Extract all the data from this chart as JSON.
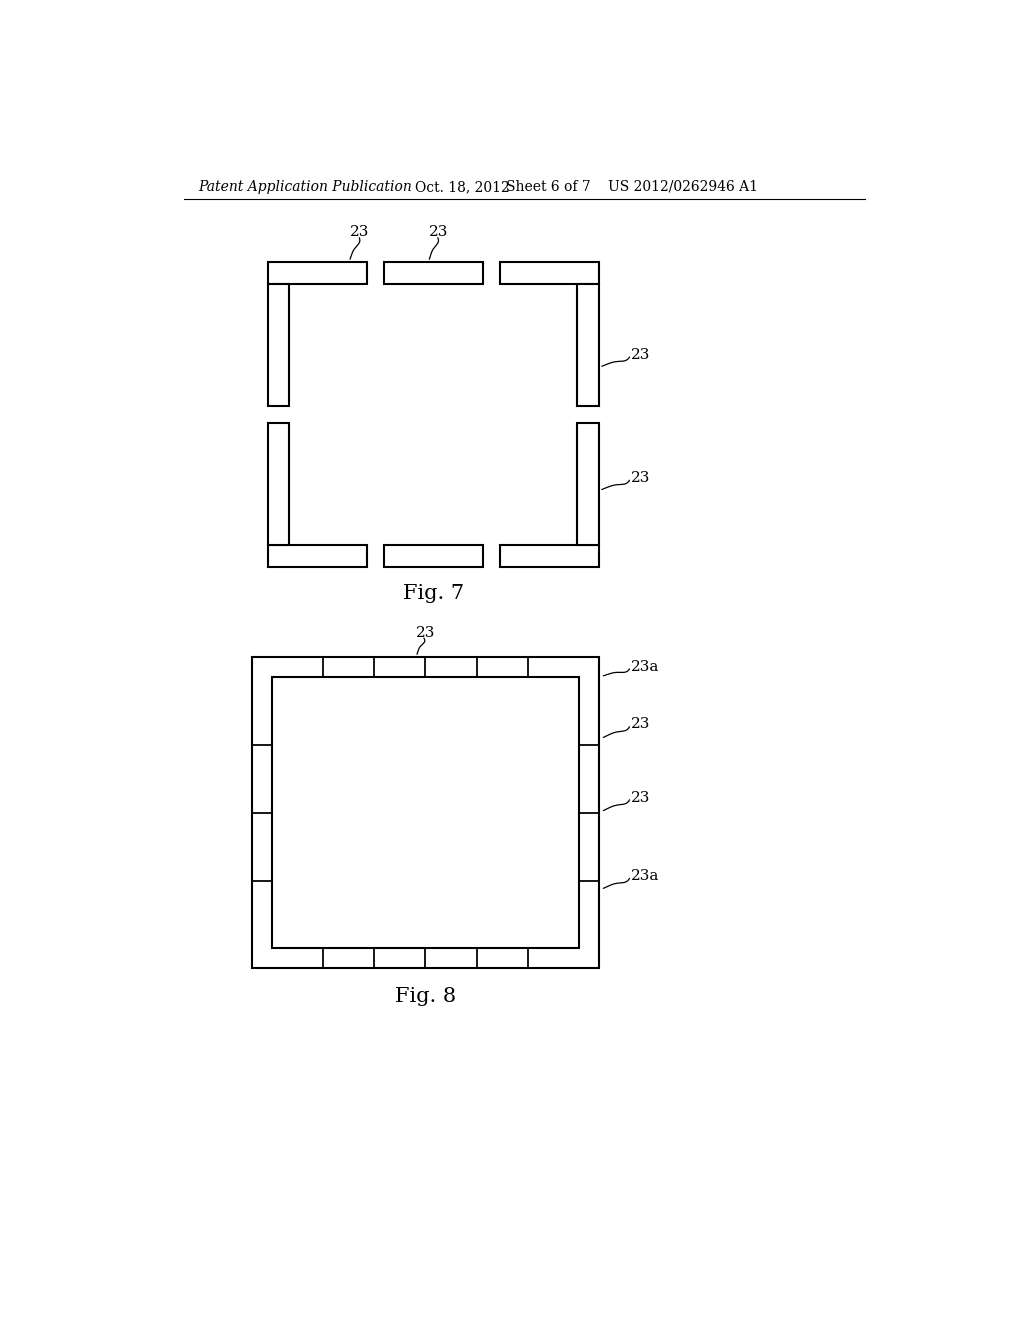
{
  "bg_color": "#ffffff",
  "line_color": "#000000",
  "lw": 1.5,
  "header_text": "Patent Application Publication",
  "header_date": "Oct. 18, 2012",
  "header_sheet": "Sheet 6 of 7",
  "header_patent": "US 2012/0262946 A1",
  "fig7_label": "Fig. 7",
  "fig8_label": "Fig. 8",
  "ann_fs": 11,
  "label_fs": 15,
  "header_fs": 10
}
